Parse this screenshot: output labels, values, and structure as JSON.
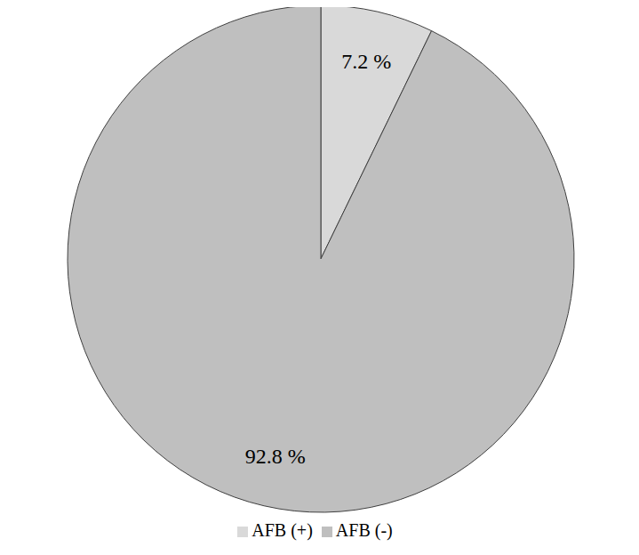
{
  "chart_data": {
    "type": "pie",
    "categories": [
      "AFB (+)",
      "AFB (-)"
    ],
    "values": [
      7.2,
      92.8
    ],
    "value_labels": [
      "7.2 %",
      "92.8 %"
    ],
    "colors": [
      "#d9d9d9",
      "#bfbfbf"
    ],
    "data_labels": true,
    "legend": "bottom"
  }
}
